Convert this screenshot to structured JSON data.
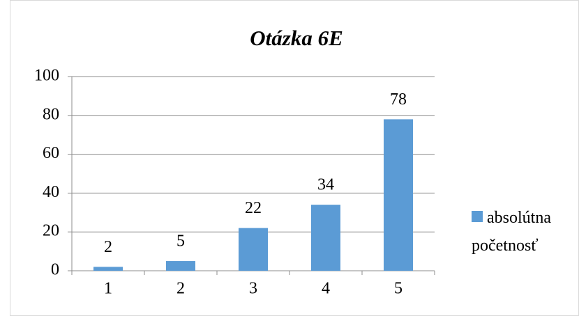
{
  "chart_data": {
    "type": "bar",
    "title": "Otázka 6E",
    "categories": [
      "1",
      "2",
      "3",
      "4",
      "5"
    ],
    "series": [
      {
        "name": "absolútna početnosť",
        "color": "#5b9bd5",
        "values": [
          2,
          5,
          22,
          34,
          78
        ]
      }
    ],
    "ylim": [
      0,
      100
    ],
    "yticks": [
      0,
      20,
      40,
      60,
      80,
      100
    ],
    "grid": true,
    "legend": "right",
    "data_labels": true
  }
}
